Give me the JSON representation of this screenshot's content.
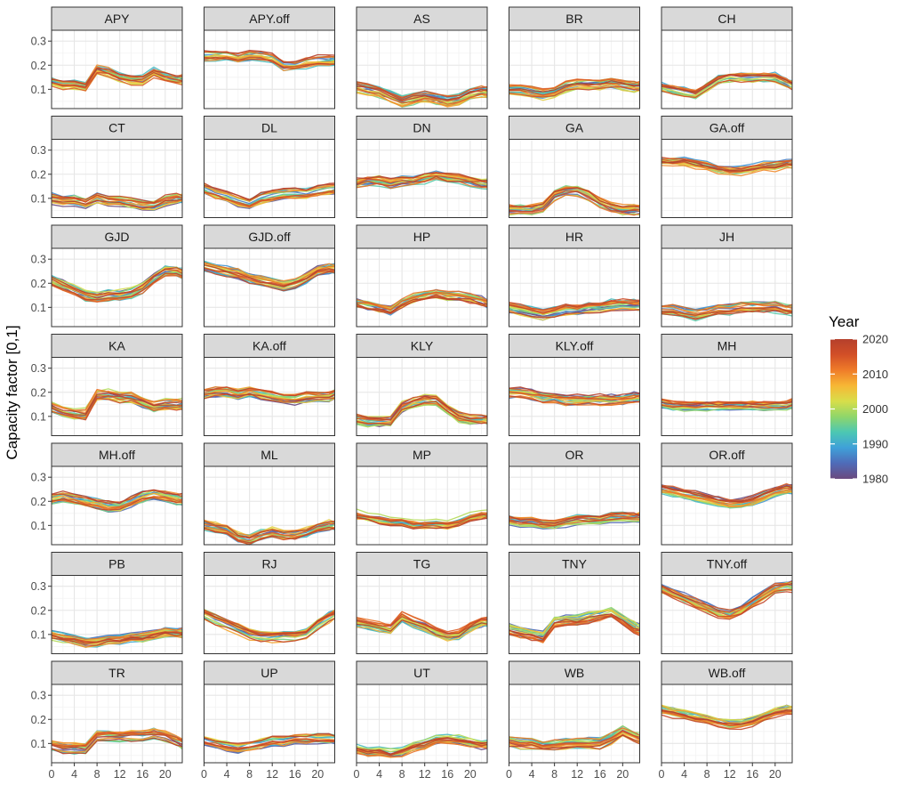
{
  "chart_data": {
    "type": "line",
    "layout": "facet-wrap-7x5",
    "ylabel": "Capacity factor [0,1]",
    "xlabel": "",
    "xlim": [
      0,
      23
    ],
    "ylim": [
      0.02,
      0.345
    ],
    "x_ticks": [
      0,
      4,
      8,
      12,
      16,
      20
    ],
    "x_tick_labels": [
      "0",
      "4",
      "8",
      "12",
      "16",
      "20"
    ],
    "y_ticks": [
      0.1,
      0.2,
      0.3
    ],
    "y_tick_labels": [
      "0.1",
      "0.2",
      "0.3"
    ],
    "legend": {
      "title": "Year",
      "type": "colorbar",
      "range": [
        1980,
        2020
      ],
      "tick_labels": [
        "2020",
        "2010",
        "2000",
        "1990",
        "1980"
      ],
      "colors_low_to_high": [
        "#6a4a7e",
        "#4f6bb8",
        "#3fa0d9",
        "#4cc7b3",
        "#8fd66a",
        "#d8de4a",
        "#f7b735",
        "#ef7c29",
        "#d24f27",
        "#b5402c"
      ]
    },
    "hours": [
      0,
      2,
      4,
      6,
      8,
      10,
      12,
      14,
      16,
      18,
      20,
      22,
      23
    ],
    "series_spread": 0.025,
    "panels": [
      {
        "name": "APY",
        "profile": [
          0.13,
          0.12,
          0.12,
          0.11,
          0.18,
          0.17,
          0.15,
          0.14,
          0.14,
          0.17,
          0.15,
          0.14,
          0.14
        ]
      },
      {
        "name": "APY.off",
        "profile": [
          0.24,
          0.24,
          0.24,
          0.23,
          0.24,
          0.24,
          0.23,
          0.2,
          0.2,
          0.21,
          0.22,
          0.22,
          0.22
        ]
      },
      {
        "name": "AS",
        "profile": [
          0.11,
          0.1,
          0.09,
          0.07,
          0.05,
          0.06,
          0.07,
          0.06,
          0.05,
          0.06,
          0.08,
          0.09,
          0.09
        ]
      },
      {
        "name": "BR",
        "profile": [
          0.1,
          0.1,
          0.09,
          0.08,
          0.09,
          0.11,
          0.12,
          0.12,
          0.12,
          0.13,
          0.12,
          0.11,
          0.11
        ]
      },
      {
        "name": "CH",
        "profile": [
          0.11,
          0.1,
          0.09,
          0.08,
          0.11,
          0.14,
          0.15,
          0.15,
          0.15,
          0.15,
          0.15,
          0.13,
          0.12
        ]
      },
      {
        "name": "CT",
        "profile": [
          0.1,
          0.09,
          0.09,
          0.08,
          0.1,
          0.09,
          0.09,
          0.08,
          0.07,
          0.07,
          0.09,
          0.1,
          0.1
        ]
      },
      {
        "name": "DL",
        "profile": [
          0.14,
          0.12,
          0.11,
          0.09,
          0.08,
          0.1,
          0.11,
          0.12,
          0.12,
          0.12,
          0.13,
          0.14,
          0.14
        ]
      },
      {
        "name": "DN",
        "profile": [
          0.16,
          0.17,
          0.17,
          0.16,
          0.17,
          0.17,
          0.18,
          0.19,
          0.18,
          0.18,
          0.17,
          0.16,
          0.16
        ]
      },
      {
        "name": "GA",
        "profile": [
          0.05,
          0.05,
          0.05,
          0.06,
          0.11,
          0.13,
          0.13,
          0.11,
          0.08,
          0.06,
          0.05,
          0.05,
          0.05
        ]
      },
      {
        "name": "GA.off",
        "profile": [
          0.25,
          0.25,
          0.25,
          0.24,
          0.23,
          0.22,
          0.21,
          0.21,
          0.22,
          0.23,
          0.23,
          0.24,
          0.24
        ]
      },
      {
        "name": "GJD",
        "profile": [
          0.21,
          0.19,
          0.17,
          0.15,
          0.14,
          0.15,
          0.15,
          0.16,
          0.18,
          0.22,
          0.25,
          0.25,
          0.24
        ]
      },
      {
        "name": "GJD.off",
        "profile": [
          0.27,
          0.26,
          0.25,
          0.24,
          0.22,
          0.21,
          0.2,
          0.19,
          0.2,
          0.22,
          0.25,
          0.26,
          0.26
        ]
      },
      {
        "name": "HP",
        "profile": [
          0.12,
          0.11,
          0.1,
          0.09,
          0.12,
          0.14,
          0.15,
          0.16,
          0.15,
          0.15,
          0.14,
          0.13,
          0.12
        ]
      },
      {
        "name": "HR",
        "profile": [
          0.1,
          0.09,
          0.08,
          0.07,
          0.08,
          0.09,
          0.09,
          0.1,
          0.1,
          0.11,
          0.11,
          0.11,
          0.11
        ]
      },
      {
        "name": "JH",
        "profile": [
          0.09,
          0.09,
          0.08,
          0.07,
          0.08,
          0.09,
          0.09,
          0.1,
          0.1,
          0.1,
          0.1,
          0.09,
          0.09
        ]
      },
      {
        "name": "KA",
        "profile": [
          0.14,
          0.12,
          0.11,
          0.11,
          0.19,
          0.19,
          0.18,
          0.18,
          0.16,
          0.14,
          0.15,
          0.15,
          0.15
        ]
      },
      {
        "name": "KA.off",
        "profile": [
          0.19,
          0.2,
          0.2,
          0.19,
          0.2,
          0.19,
          0.18,
          0.17,
          0.17,
          0.18,
          0.18,
          0.18,
          0.19
        ]
      },
      {
        "name": "KLY",
        "profile": [
          0.09,
          0.08,
          0.08,
          0.08,
          0.14,
          0.16,
          0.17,
          0.17,
          0.13,
          0.1,
          0.09,
          0.09,
          0.09
        ]
      },
      {
        "name": "KLY.off",
        "profile": [
          0.2,
          0.2,
          0.19,
          0.18,
          0.18,
          0.17,
          0.17,
          0.17,
          0.17,
          0.17,
          0.17,
          0.18,
          0.18
        ]
      },
      {
        "name": "MH",
        "profile": [
          0.15,
          0.14,
          0.14,
          0.14,
          0.14,
          0.14,
          0.14,
          0.14,
          0.14,
          0.14,
          0.14,
          0.14,
          0.15
        ]
      },
      {
        "name": "MH.off",
        "profile": [
          0.21,
          0.22,
          0.21,
          0.2,
          0.19,
          0.18,
          0.18,
          0.2,
          0.22,
          0.23,
          0.22,
          0.21,
          0.21
        ]
      },
      {
        "name": "ML",
        "profile": [
          0.1,
          0.09,
          0.08,
          0.05,
          0.04,
          0.06,
          0.07,
          0.06,
          0.06,
          0.07,
          0.09,
          0.1,
          0.1
        ]
      },
      {
        "name": "MP",
        "profile": [
          0.15,
          0.14,
          0.13,
          0.12,
          0.12,
          0.11,
          0.11,
          0.11,
          0.11,
          0.12,
          0.14,
          0.15,
          0.15
        ]
      },
      {
        "name": "OR",
        "profile": [
          0.12,
          0.11,
          0.11,
          0.1,
          0.1,
          0.11,
          0.12,
          0.12,
          0.12,
          0.13,
          0.13,
          0.13,
          0.13
        ]
      },
      {
        "name": "OR.off",
        "profile": [
          0.25,
          0.24,
          0.23,
          0.22,
          0.21,
          0.2,
          0.19,
          0.19,
          0.2,
          0.22,
          0.24,
          0.25,
          0.25
        ]
      },
      {
        "name": "PB",
        "profile": [
          0.1,
          0.09,
          0.08,
          0.07,
          0.07,
          0.08,
          0.08,
          0.09,
          0.09,
          0.1,
          0.11,
          0.11,
          0.11
        ]
      },
      {
        "name": "RJ",
        "profile": [
          0.18,
          0.16,
          0.14,
          0.12,
          0.1,
          0.09,
          0.09,
          0.09,
          0.09,
          0.1,
          0.14,
          0.17,
          0.18
        ]
      },
      {
        "name": "TG",
        "profile": [
          0.15,
          0.14,
          0.13,
          0.12,
          0.17,
          0.15,
          0.13,
          0.11,
          0.09,
          0.1,
          0.13,
          0.15,
          0.15
        ]
      },
      {
        "name": "TNY",
        "profile": [
          0.12,
          0.11,
          0.1,
          0.09,
          0.15,
          0.16,
          0.16,
          0.17,
          0.18,
          0.19,
          0.16,
          0.13,
          0.12
        ]
      },
      {
        "name": "TNY.off",
        "profile": [
          0.29,
          0.27,
          0.25,
          0.23,
          0.21,
          0.19,
          0.18,
          0.2,
          0.23,
          0.26,
          0.29,
          0.3,
          0.3
        ]
      },
      {
        "name": "TR",
        "profile": [
          0.09,
          0.08,
          0.08,
          0.08,
          0.13,
          0.13,
          0.13,
          0.13,
          0.13,
          0.14,
          0.13,
          0.11,
          0.1
        ]
      },
      {
        "name": "UP",
        "profile": [
          0.11,
          0.1,
          0.09,
          0.08,
          0.09,
          0.1,
          0.11,
          0.11,
          0.12,
          0.12,
          0.12,
          0.12,
          0.12
        ]
      },
      {
        "name": "UT",
        "profile": [
          0.08,
          0.07,
          0.07,
          0.06,
          0.07,
          0.09,
          0.1,
          0.12,
          0.12,
          0.12,
          0.11,
          0.1,
          0.1
        ]
      },
      {
        "name": "WB",
        "profile": [
          0.11,
          0.1,
          0.1,
          0.09,
          0.09,
          0.1,
          0.1,
          0.1,
          0.1,
          0.12,
          0.15,
          0.13,
          0.12
        ]
      },
      {
        "name": "WB.off",
        "profile": [
          0.24,
          0.23,
          0.22,
          0.21,
          0.2,
          0.19,
          0.18,
          0.18,
          0.19,
          0.21,
          0.23,
          0.24,
          0.24
        ]
      }
    ]
  }
}
